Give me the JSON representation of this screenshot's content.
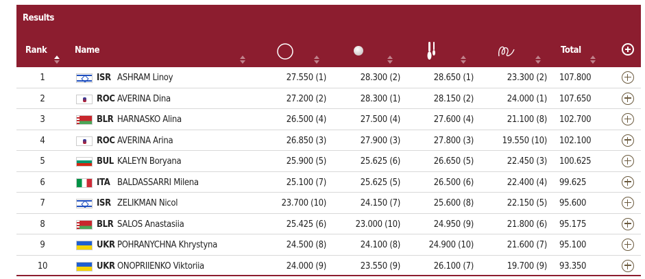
{
  "title": "Results",
  "headers": {
    "rank": "Rank",
    "name": "Name",
    "total": "Total"
  },
  "apparatus_icons": [
    "hoop-icon",
    "ball-icon",
    "clubs-icon",
    "ribbon-icon"
  ],
  "colors": {
    "header_bg": "#8c1d2f",
    "accent": "#6b5a3e"
  },
  "rows": [
    {
      "rank": "1",
      "noc": "ISR",
      "name": "ASHRAM Linoy",
      "hoop": "27.550  (1)",
      "ball": "28.300  (2)",
      "clubs": "28.650  (1)",
      "ribbon": "23.300  (2)",
      "total": "107.800"
    },
    {
      "rank": "2",
      "noc": "ROC",
      "name": "AVERINA Dina",
      "hoop": "27.200  (2)",
      "ball": "28.300  (1)",
      "clubs": "28.150  (2)",
      "ribbon": "24.000  (1)",
      "total": "107.650"
    },
    {
      "rank": "3",
      "noc": "BLR",
      "name": "HARNASKO Alina",
      "hoop": "26.500  (4)",
      "ball": "27.500  (4)",
      "clubs": "27.600  (4)",
      "ribbon": "21.100  (8)",
      "total": "102.700"
    },
    {
      "rank": "4",
      "noc": "ROC",
      "name": "AVERINA Arina",
      "hoop": "26.850  (3)",
      "ball": "27.900  (3)",
      "clubs": "27.800  (3)",
      "ribbon": "19.550  (10)",
      "total": "102.100"
    },
    {
      "rank": "5",
      "noc": "BUL",
      "name": "KALEYN Boryana",
      "hoop": "25.900  (5)",
      "ball": "25.625  (6)",
      "clubs": "26.650  (5)",
      "ribbon": "22.450  (3)",
      "total": "100.625"
    },
    {
      "rank": "6",
      "noc": "ITA",
      "name": "BALDASSARRI Milena",
      "hoop": "25.100  (7)",
      "ball": "25.625  (5)",
      "clubs": "26.500  (6)",
      "ribbon": "22.400  (4)",
      "total": "99.625"
    },
    {
      "rank": "7",
      "noc": "ISR",
      "name": "ZELIKMAN Nicol",
      "hoop": "23.700  (10)",
      "ball": "24.150  (7)",
      "clubs": "25.600  (8)",
      "ribbon": "22.150  (5)",
      "total": "95.600"
    },
    {
      "rank": "8",
      "noc": "BLR",
      "name": "SALOS Anastasiia",
      "hoop": "25.425  (6)",
      "ball": "23.000  (10)",
      "clubs": "24.950  (9)",
      "ribbon": "21.800  (6)",
      "total": "95.175"
    },
    {
      "rank": "9",
      "noc": "UKR",
      "name": "POHRANYCHNA Khrystyna",
      "hoop": "24.500  (8)",
      "ball": "24.100  (8)",
      "clubs": "24.900  (10)",
      "ribbon": "21.600  (7)",
      "total": "95.100"
    },
    {
      "rank": "10",
      "noc": "UKR",
      "name": "ONOPRIIENKO Viktoriia",
      "hoop": "24.000  (9)",
      "ball": "23.550  (9)",
      "clubs": "26.100  (7)",
      "ribbon": "19.700  (9)",
      "total": "93.350"
    }
  ]
}
